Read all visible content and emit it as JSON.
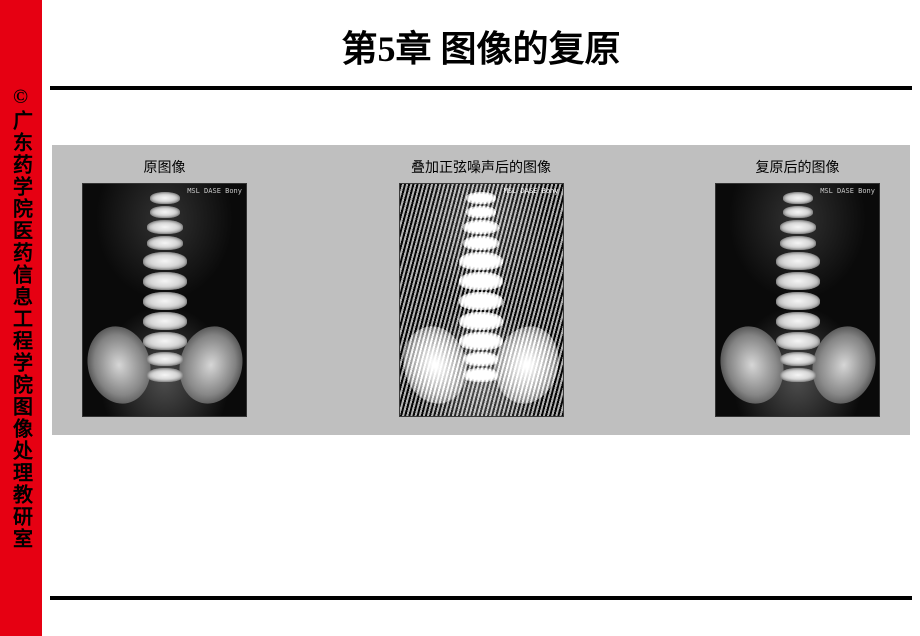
{
  "sidebar": {
    "credit": "©广东药学院医药信息工程学院图像处理教研室"
  },
  "title": "第5章 图像的复原",
  "figure": {
    "background": "#bfbfbf",
    "panels": [
      {
        "caption": "原图像"
      },
      {
        "caption": "叠加正弦噪声后的图像"
      },
      {
        "caption": "复原后的图像"
      }
    ],
    "image_tag": "MSL DASE\n  Bony"
  },
  "style": {
    "sidebar_bg": "#e60012",
    "rule_color": "#000000",
    "title_fontsize": 36,
    "caption_fontsize": 14
  }
}
